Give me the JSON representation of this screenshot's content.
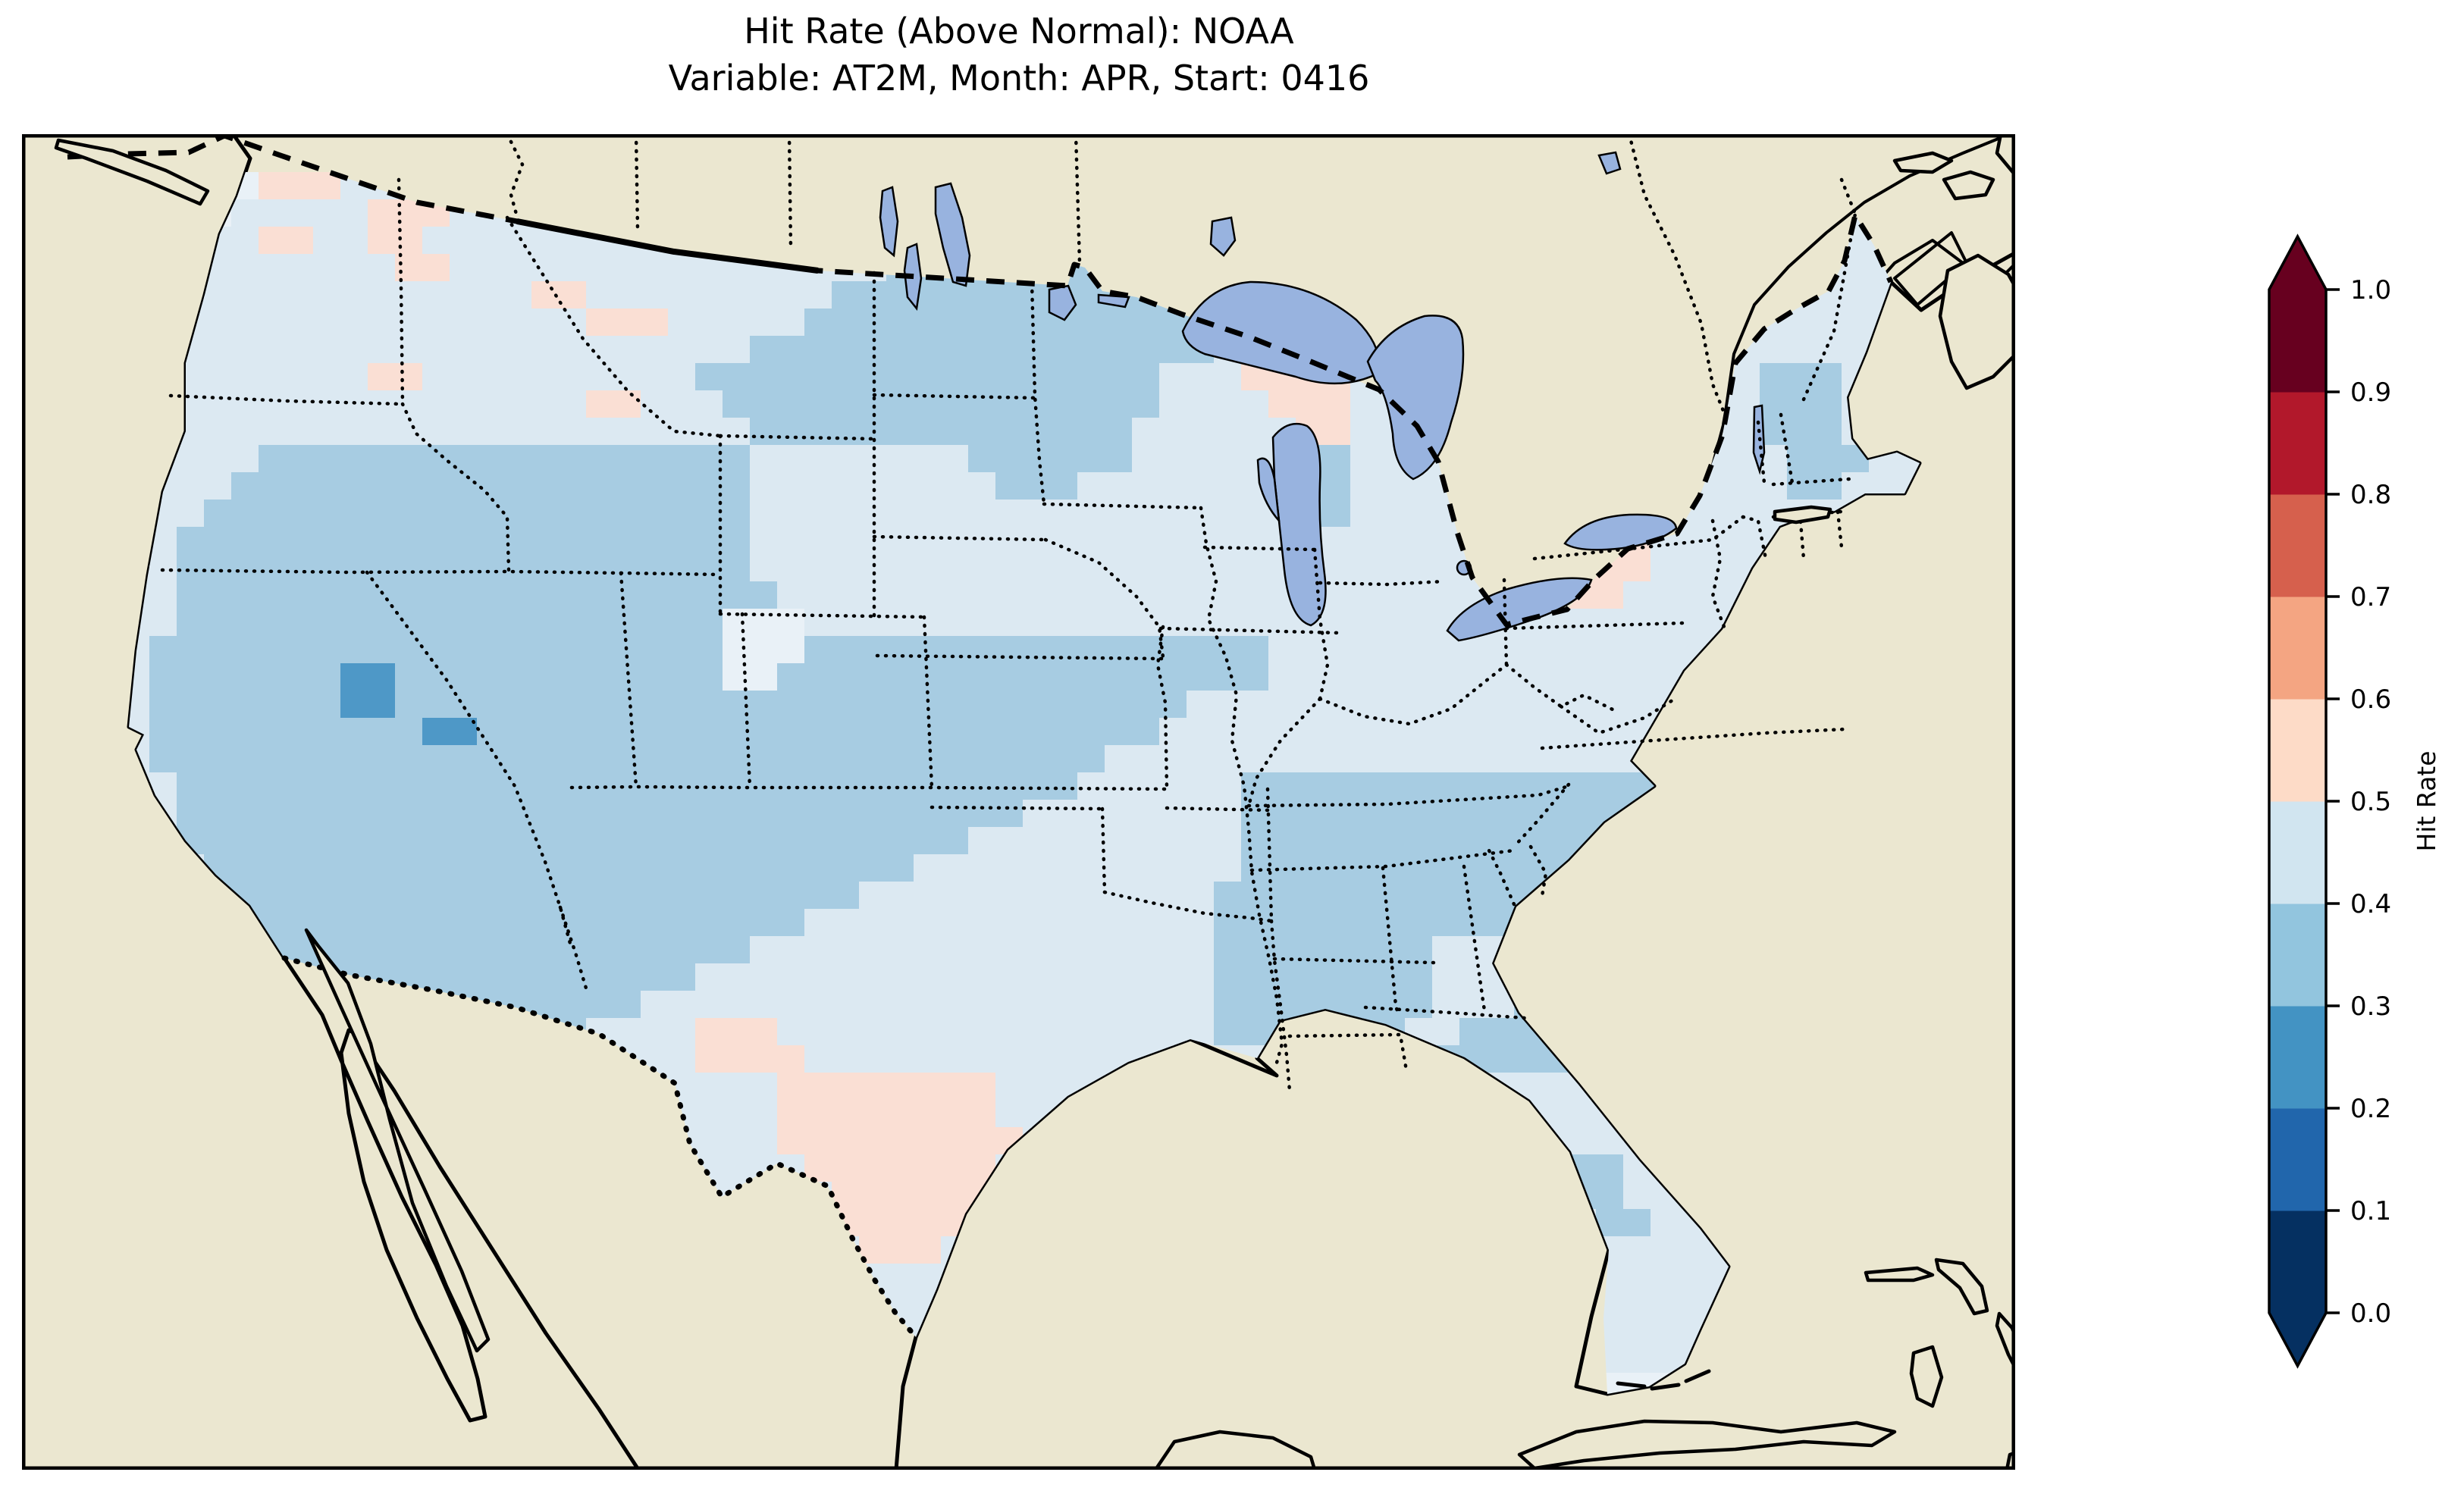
{
  "title": {
    "line1": "Hit Rate (Above Normal): NOAA",
    "line2": "Variable: AT2M, Month: APR, Start: 0416"
  },
  "colorbar": {
    "label": "Hit Rate",
    "tick_labels": [
      "0.0",
      "0.1",
      "0.2",
      "0.3",
      "0.4",
      "0.5",
      "0.6",
      "0.7",
      "0.8",
      "0.9",
      "1.0"
    ],
    "bin_colors_low_to_high": [
      "#053061",
      "#2166ac",
      "#4393c3",
      "#92c5de",
      "#d1e5f0",
      "#fddbc7",
      "#f4a582",
      "#d6604d",
      "#b2182b",
      "#67001f"
    ],
    "extend_under_color": "#053061",
    "extend_over_color": "#67001f"
  },
  "map": {
    "ocean_color": "#98b3df",
    "land_color": "#ebe7d0",
    "coast_color": "#000000",
    "cell_palette": {
      "l": "#dce9f2",
      "m": "#a7cce2",
      "d": "#4e98c7",
      "p": "#fadfd4",
      "w": "#e9f1f7"
    },
    "cell_palette_meaning": {
      "l": "hit rate 0.4-0.5",
      "m": "hit rate 0.3-0.4",
      "d": "hit rate 0.2-0.3",
      "p": "hit rate 0.5-0.6",
      "w": "hit rate 0.4-0.5 (coastal light)"
    },
    "grid_rows": [
      "llllwwwppplllllllllllllllllllllllllllllllllllllllllllllllllllllllllll",
      "llllwwlllllpppllllllllllllllllllllllllllllllllllllllllllllllllllllllll",
      "lllllllppllpplllllllllllllllllllllllllllllllllllllllllllllllllllllllll",
      "llllllllllllppllllllllllllllllmmmmmmmmmmmlllllllllllllllllllllllllllll",
      "lllllllllllllllllpplllllllllmmmmmmmmmmmmmmmlllllllllllllllllllllllllll",
      "lllllllllllllllllllppplllllmmmmmmmmmmmmmmmmlllllllllllllllllllllllllll",
      "lllllllllllllllllllllllllmmmmmmmmmmmmmmmmmllppllllllllllllllllllllllll",
      "lllllllllllppllllllllllmmmmmmmmmmmmmmmmmlllpppplllllllllllllllmmmllll",
      "lllllllllllllllllllpplllmmmmmmmmmmmmmmmmllllppplllllllllllllllmmmllll",
      "lllllllllllllllllllllllllmmmmmmmmmmmmmmllllllpplllllllllllllllmmmllll",
      "lllllllmmmmmmmmmmmmmmmmmmllllllllmmmmmmllllllmmllllllllllllllllmmmllll",
      "llllllmmmmmmmmmmmmmmmmmmmlllllllllmmmllllllllmmllllllllllllllllmmlllll",
      "lllllmmmmmmmmmmmmmmmmmmmmllllllllllllllllllllmmlllllllllllllllllllllll",
      "llllmmmmmmmmmmmmmmmmmmmmmllllllllllllllllllllllllllllllppplllllllllll",
      "llllmmmmmmmmmmmmmmmmmmmmmllllllllllllllllllllllllllllllppplllllllllll",
      "llllmmmmmmmmmmmmmmmmmmmmmmlllllllllllllllllllllllllllllpplllllllllllll",
      "llllmmmmmmmmmmmmmmmmmmmmwwwlllllllllllllllllllllllllllllllllllllllllll",
      "lllmmmmmmmmmmmmmmmmmmmmmwwwmmmmmmmmmmmmmmmmmllllllllllllllllllllllllll",
      "lllmmmmmmmddmmmmmmmmmmmmwwmmmmmmmmmmmmmmmmmmllllllllllllllllllllllllll",
      "lllmmmmmmmddmmmmmmmmmmmmmmmmmmmmmmmmmmmmmlllllllllllllllllllllllllllll",
      "lllmmmmmmmmmmddmmmmmmmmmmmmmmmmmmmmmmmmmlllllllllllllllllllllllllllll",
      "lllmmmmmmmmmmmmmmmmmmmmmmmmmmmmmmmmmmmlllllllllllllllllllllllllllllll",
      "llllmmmmmmmmmmmmmmmmmmmmmmmmmmmmmmmmmllllllmmmmmmmmmmmmmmmmmllllllllll",
      "llllmmmmmmmmmmmmmmmmmmmmmmmmmmmmmmmllllllllmmmmmmmmmmmmmmmmmllllllllll",
      "llllmmmmmmmmmmmmmmmmmmmmmmmmmmmmmllllllllllmmmmmmmmmmmmmmmmmllllllllll",
      "lllllmmmmmmmmmmmmmmmmmmmmmmmmmmllllllllllllmmmmmmmmmmmmmmmmlllllllllll",
      "lllllmmmmmmmmmmmmmmmmmmmmmmmmlllllllllllllmmmmmmmmmmmmmmmmmmmmmlllllll",
      "llllllmmmmmmmmmmmmmmmmmmmmmlllllllllllllllmmmmmmmmmmmmmmmmmmmmmlllllll",
      "lllllllmmmmmmmmmmmmmmmmmmlllllllllllllllllmmmmmmmmllllmmmmmmmmmlllllll",
      "llllllllmmmmmmmmmmmmmmmlllllllllllllllllllmmmmmmmmllllmmmmmmmmmlllllll",
      "lllllllllmmmmmmmmmmmmlllllllllllllllllllllmmmmmmmmlllmmmmmmmmmllllllll",
      "llllllllllmmmmmmmmmllllpppllllllllllllllllmmmmmmmllmmmmmmmmmlllllllll",
      "lllllllllllllllllllllllppppllllllllllllllllllmmmmmmmmmmmmmmlllllllllll",
      "llllllllllllllllllllllllllpppppppplllllllllllemmmmmlllllllllllllllllll",
      "llllllllllllllllllllllllllpppppppplllllllllllllllllllllllllllllllllll",
      "llllllllllllllllllllllllllppppppppplllllllllllllllllllllllllllllllllll",
      "lllllllllllllllllllllllllllpppppppllllllllllllllllllllmmmlllllllllll",
      "llllllllllllllllllllllllllllppppppllllllllllllllllllllmmmlllllllllll",
      "llllllllllllllllllllllllllllppppplllllllllllllllllllllllmmllllllllllll",
      "lllllllllllllllllllllllllllllppplllllllllllllllllllllllllllllllllllll",
      "llllllllllllllllllllllllllllllllllllllllllllllllllllllllllllllllllllll",
      "llllllllllllllllllllllllllllllllllllllllllllllllllllllllllllllllllllll",
      "llllllllllllllllllllllllllllllllllllllllllllllllllllllllllllllllllllll",
      "llllllllllllllllllllllllllllllllllllllllllllllllllllllllllllllllllllll",
      "lllllllllllllllllllllllllllllllllllllllllllllllllllllllwwwwwwlllllllll"
    ]
  },
  "chart_data": {
    "type": "heatmap",
    "title": "Hit Rate (Above Normal): NOAA",
    "subtitle": "Variable: AT2M, Month: APR, Start: 0416",
    "legend_label": "Hit Rate",
    "colorbar_ticks": [
      0.0,
      0.1,
      0.2,
      0.3,
      0.4,
      0.5,
      0.6,
      0.7,
      0.8,
      0.9,
      1.0
    ],
    "colorbar_range": [
      0.0,
      1.0
    ],
    "colorbar_extend": "both",
    "dominant_value_bins": {
      "0.4-0.5": "most of CONUS (very light blue)",
      "0.3-0.4": "western interior, central plains, Tennessee valley, Southeast (light blue)",
      "0.2-0.3": "two small spots in Utah/Nevada (dark blue)",
      "0.5-0.6": "central/south Texas, Idaho-Montana border, upper Wisconsin, Lake Erie shore (pale pink)"
    }
  }
}
